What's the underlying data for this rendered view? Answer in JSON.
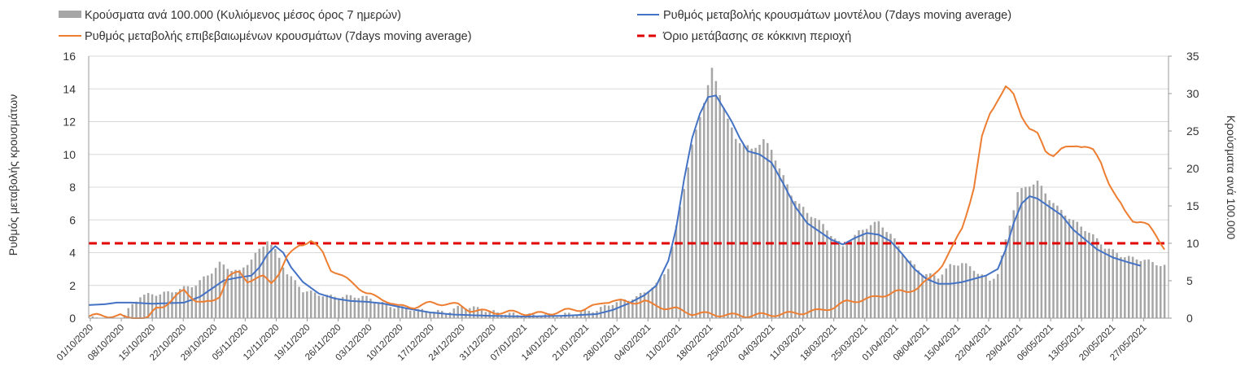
{
  "chart_data": {
    "type": "bar+line",
    "legend_position": "top-left",
    "grid": true,
    "y_left": {
      "label": "Ρυθμός μεταβολής κρουσμάτων",
      "range": [
        0,
        16
      ],
      "ticks": [
        "0",
        "2",
        "4",
        "6",
        "8",
        "10",
        "12",
        "14",
        "16"
      ]
    },
    "y_right": {
      "label": "Κρούσματα ανά 100.000",
      "range": [
        0,
        35
      ],
      "ticks": [
        "0",
        "5",
        "10",
        "15",
        "20",
        "25",
        "30",
        "35"
      ]
    },
    "x": {
      "start": "2020-10-01",
      "end": "2021-06-01",
      "days": 244,
      "ticks": [
        "01/10/2020",
        "08/10/2020",
        "15/10/2020",
        "22/10/2020",
        "29/10/2020",
        "05/11/2020",
        "12/11/2020",
        "19/11/2020",
        "26/11/2020",
        "03/12/2020",
        "10/12/2020",
        "17/12/2020",
        "24/12/2020",
        "31/12/2020",
        "07/01/2021",
        "14/01/2021",
        "21/01/2021",
        "28/01/2021",
        "04/02/2021",
        "11/02/2021",
        "18/02/2021",
        "25/02/2021",
        "04/03/2021",
        "11/03/2021",
        "18/03/2021",
        "25/03/2021",
        "01/04/2021",
        "08/04/2021",
        "15/04/2021",
        "22/04/2021",
        "29/04/2021",
        "06/05/2021",
        "13/05/2021",
        "20/05/2021",
        "27/05/2021"
      ]
    },
    "series": [
      {
        "name": "Κρούσματα ανά 100.000 (Κυλιόμενος μέσος όρος 7 ημερών)",
        "kind": "bar",
        "axis": "right",
        "color": "#a6a6a6",
        "knots": [
          [
            0,
            0
          ],
          [
            8,
            0
          ],
          [
            9,
            0.5
          ],
          [
            13,
            3.0
          ],
          [
            20,
            3.4
          ],
          [
            27,
            4.5
          ],
          [
            31,
            6.2
          ],
          [
            33,
            7.3
          ],
          [
            36,
            6.5
          ],
          [
            38,
            6.2
          ],
          [
            42,
            8.5
          ],
          [
            44,
            9.7
          ],
          [
            45,
            10.5
          ],
          [
            47,
            9.0
          ],
          [
            50,
            6.0
          ],
          [
            54,
            3.7
          ],
          [
            58,
            3.2
          ],
          [
            61,
            2.9
          ],
          [
            69,
            2.9
          ],
          [
            72,
            2.4
          ],
          [
            76,
            1.6
          ],
          [
            84,
            1.0
          ],
          [
            90,
            0.8
          ],
          [
            94,
            1.6
          ],
          [
            98,
            1.3
          ],
          [
            103,
            0.7
          ],
          [
            110,
            0.4
          ],
          [
            118,
            0.4
          ],
          [
            122,
            0.6
          ],
          [
            128,
            1.1
          ],
          [
            132,
            2.0
          ],
          [
            138,
            2.8
          ],
          [
            143,
            4.5
          ],
          [
            146,
            6.8
          ],
          [
            150,
            17.5
          ],
          [
            152,
            23.0
          ],
          [
            155,
            29.0
          ],
          [
            157,
            33.2
          ],
          [
            159,
            30.0
          ],
          [
            161,
            26.5
          ],
          [
            163,
            24.0
          ],
          [
            167,
            22.5
          ],
          [
            170,
            23.8
          ],
          [
            172,
            22.5
          ],
          [
            177,
            16.5
          ],
          [
            181,
            14.0
          ],
          [
            183,
            13.5
          ],
          [
            186,
            11.8
          ],
          [
            190,
            9.5
          ],
          [
            194,
            11.5
          ],
          [
            197,
            12.5
          ],
          [
            199,
            12.8
          ],
          [
            202,
            11.2
          ],
          [
            206,
            8.0
          ],
          [
            210,
            6.0
          ],
          [
            214,
            5.5
          ],
          [
            217,
            7.0
          ],
          [
            220,
            7.4
          ],
          [
            223,
            6.5
          ],
          [
            227,
            5.0
          ],
          [
            229,
            6.0
          ],
          [
            232,
            12.5
          ],
          [
            234,
            16.8
          ],
          [
            237,
            17.8
          ],
          [
            239,
            18.2
          ],
          [
            242,
            16.0
          ],
          [
            244,
            14.8
          ],
          [
            248,
            13.0
          ],
          [
            252,
            11.5
          ],
          [
            256,
            9.5
          ],
          [
            260,
            8.4
          ],
          [
            263,
            8.0
          ],
          [
            266,
            7.8
          ],
          [
            268,
            7.4
          ],
          [
            271,
            7.0
          ]
        ]
      },
      {
        "name": "Ρυθμός μεταβολής κρουσμάτων μοντέλου (7days moving average)",
        "kind": "line",
        "axis": "left",
        "color": "#4472c4",
        "knots": [
          [
            0,
            0.8
          ],
          [
            4,
            0.85
          ],
          [
            7,
            0.95
          ],
          [
            11,
            0.95
          ],
          [
            16,
            0.88
          ],
          [
            24,
            0.95
          ],
          [
            28,
            1.3
          ],
          [
            31,
            1.8
          ],
          [
            34,
            2.3
          ],
          [
            37,
            2.45
          ],
          [
            41,
            2.6
          ],
          [
            43,
            3.1
          ],
          [
            45,
            3.9
          ],
          [
            47,
            4.4
          ],
          [
            49,
            4.0
          ],
          [
            51,
            3.1
          ],
          [
            54,
            2.2
          ],
          [
            58,
            1.5
          ],
          [
            62,
            1.2
          ],
          [
            66,
            1.05
          ],
          [
            70,
            1.0
          ],
          [
            74,
            0.9
          ],
          [
            80,
            0.6
          ],
          [
            86,
            0.35
          ],
          [
            92,
            0.22
          ],
          [
            100,
            0.15
          ],
          [
            110,
            0.1
          ],
          [
            120,
            0.15
          ],
          [
            128,
            0.25
          ],
          [
            132,
            0.5
          ],
          [
            136,
            0.9
          ],
          [
            140,
            1.4
          ],
          [
            143,
            2.0
          ],
          [
            146,
            3.5
          ],
          [
            148,
            5.5
          ],
          [
            150,
            8.5
          ],
          [
            152,
            11.0
          ],
          [
            154,
            12.5
          ],
          [
            156,
            13.5
          ],
          [
            158,
            13.6
          ],
          [
            160,
            12.8
          ],
          [
            162,
            12.0
          ],
          [
            164,
            11.0
          ],
          [
            166,
            10.2
          ],
          [
            169,
            10.0
          ],
          [
            172,
            9.5
          ],
          [
            175,
            8.2
          ],
          [
            178,
            6.8
          ],
          [
            181,
            5.8
          ],
          [
            184,
            5.3
          ],
          [
            187,
            4.8
          ],
          [
            190,
            4.5
          ],
          [
            193,
            4.9
          ],
          [
            196,
            5.2
          ],
          [
            199,
            5.1
          ],
          [
            202,
            4.7
          ],
          [
            205,
            3.9
          ],
          [
            208,
            3.0
          ],
          [
            211,
            2.4
          ],
          [
            214,
            2.1
          ],
          [
            217,
            2.1
          ],
          [
            220,
            2.2
          ],
          [
            223,
            2.4
          ],
          [
            226,
            2.6
          ],
          [
            229,
            3.0
          ],
          [
            231,
            4.2
          ],
          [
            233,
            5.8
          ],
          [
            235,
            7.0
          ],
          [
            237,
            7.45
          ],
          [
            239,
            7.3
          ],
          [
            242,
            6.8
          ],
          [
            245,
            6.3
          ],
          [
            248,
            5.4
          ],
          [
            251,
            4.8
          ],
          [
            254,
            4.2
          ],
          [
            258,
            3.7
          ],
          [
            262,
            3.4
          ],
          [
            265,
            3.2
          ]
        ]
      },
      {
        "name": "Ρυθμός μεταβολής επιβεβαιωμένων κρουσμάτων (7days moving average)",
        "kind": "line",
        "axis": "left",
        "color": "#ed7d31",
        "knots": [
          [
            0,
            0.1
          ],
          [
            2,
            0.15
          ],
          [
            8,
            0.15
          ],
          [
            9,
            0.0
          ],
          [
            15,
            0.0
          ],
          [
            17,
            0.6
          ],
          [
            19,
            0.8
          ],
          [
            21,
            1.1
          ],
          [
            24,
            1.7
          ],
          [
            27,
            1.1
          ],
          [
            29,
            0.9
          ],
          [
            31,
            1.0
          ],
          [
            33,
            1.4
          ],
          [
            35,
            2.5
          ],
          [
            38,
            2.8
          ],
          [
            40,
            2.3
          ],
          [
            42,
            2.4
          ],
          [
            44,
            2.5
          ],
          [
            46,
            2.2
          ],
          [
            48,
            2.8
          ],
          [
            50,
            3.7
          ],
          [
            53,
            4.5
          ],
          [
            56,
            4.7
          ],
          [
            59,
            4.0
          ],
          [
            61,
            3.0
          ],
          [
            64,
            2.5
          ],
          [
            67,
            2.1
          ],
          [
            70,
            1.5
          ],
          [
            72,
            1.3
          ],
          [
            75,
            1.1
          ],
          [
            78,
            0.7
          ],
          [
            82,
            0.7
          ],
          [
            86,
            0.9
          ],
          [
            90,
            0.9
          ],
          [
            93,
            0.8
          ],
          [
            96,
            0.5
          ],
          [
            100,
            0.4
          ],
          [
            104,
            0.35
          ],
          [
            108,
            0.35
          ],
          [
            112,
            0.25
          ],
          [
            116,
            0.3
          ],
          [
            120,
            0.45
          ],
          [
            124,
            0.55
          ],
          [
            128,
            0.75
          ],
          [
            130,
            1.0
          ],
          [
            132,
            1.1
          ],
          [
            136,
            0.95
          ],
          [
            140,
            1.05
          ],
          [
            142,
            0.8
          ],
          [
            145,
            0.65
          ],
          [
            148,
            0.55
          ],
          [
            150,
            0.4
          ],
          [
            152,
            0.3
          ],
          [
            156,
            0.25
          ],
          [
            160,
            0.2
          ],
          [
            165,
            0.15
          ],
          [
            170,
            0.2
          ],
          [
            175,
            0.25
          ],
          [
            180,
            0.35
          ],
          [
            184,
            0.45
          ],
          [
            188,
            0.7
          ],
          [
            191,
            1.0
          ],
          [
            194,
            1.1
          ],
          [
            197,
            1.2
          ],
          [
            200,
            1.4
          ],
          [
            203,
            1.6
          ],
          [
            206,
            1.6
          ],
          [
            209,
            1.9
          ],
          [
            212,
            2.4
          ],
          [
            215,
            3.3
          ],
          [
            218,
            4.5
          ],
          [
            220,
            5.5
          ],
          [
            223,
            8.0
          ],
          [
            225,
            11.0
          ],
          [
            227,
            12.5
          ],
          [
            229,
            13.4
          ],
          [
            231,
            14.1
          ],
          [
            233,
            13.6
          ],
          [
            235,
            12.4
          ],
          [
            237,
            11.6
          ],
          [
            239,
            11.2
          ],
          [
            241,
            10.2
          ],
          [
            243,
            10.0
          ],
          [
            245,
            10.3
          ],
          [
            247,
            10.4
          ],
          [
            249,
            10.6
          ],
          [
            251,
            10.5
          ],
          [
            253,
            10.2
          ],
          [
            255,
            9.5
          ],
          [
            257,
            8.3
          ],
          [
            259,
            7.3
          ],
          [
            261,
            6.5
          ],
          [
            263,
            6.0
          ],
          [
            265,
            5.9
          ],
          [
            267,
            5.6
          ],
          [
            269,
            5.0
          ],
          [
            271,
            4.3
          ]
        ]
      }
    ],
    "threshold": {
      "name": "Όριο μετάβασης σε κόκκινη περιοχή",
      "axis": "left",
      "value": 4.57,
      "color": "#e00000"
    }
  }
}
